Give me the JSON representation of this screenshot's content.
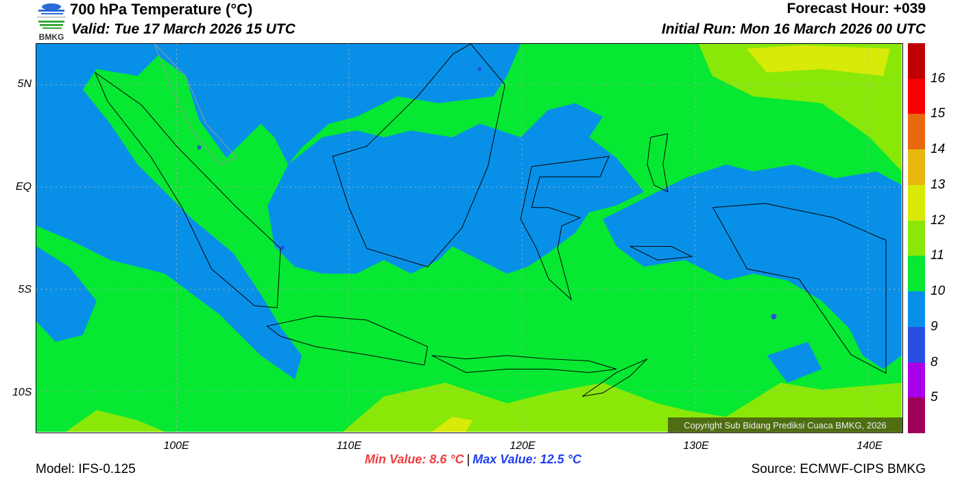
{
  "header": {
    "title": "700 hPa Temperature (°C)",
    "valid": "Valid: Tue 17 March 2026 15 UTC",
    "forecast_hour": "Forecast Hour: +039",
    "initial_run": "Initial Run: Mon 16 March 2026 00 UTC"
  },
  "logo": {
    "text": "BMKG"
  },
  "map": {
    "lat_labels": [
      "5N",
      "EQ",
      "5S",
      "10S"
    ],
    "lon_labels": [
      "100E",
      "110E",
      "120E",
      "130E",
      "140E"
    ],
    "copyright": "Copyright Sub Bidang Prediksi Cuaca BMKG, 2026"
  },
  "colorbar": {
    "labels": [
      "16",
      "15",
      "14",
      "13",
      "12",
      "11",
      "10",
      "9",
      "8",
      "5"
    ],
    "colors": [
      "#c00000",
      "#f80000",
      "#e86810",
      "#e8b810",
      "#d8ea08",
      "#8ae808",
      "#06e832",
      "#0890e8",
      "#2850e0",
      "#a800e8",
      "#a00058"
    ]
  },
  "footer": {
    "model": "Model: IFS-0.125",
    "source": "Source: ECMWF-CIPS BMKG",
    "min_value": "Min Value: 8.6 °C",
    "separator": "|",
    "max_value": "Max Value: 12.5 °C"
  }
}
